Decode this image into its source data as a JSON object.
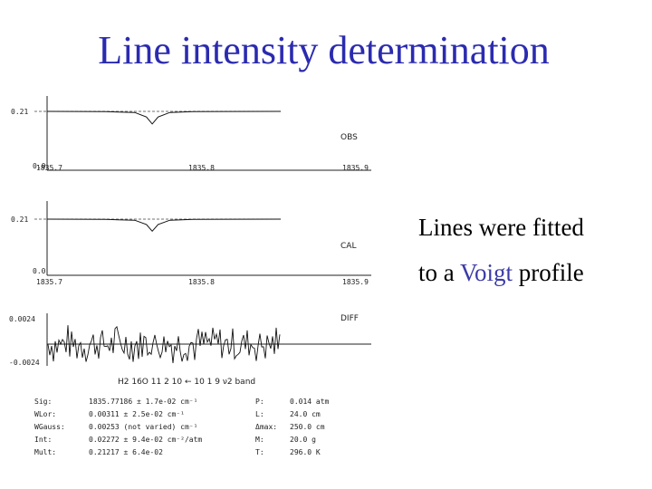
{
  "title": "Line intensity determination",
  "caption": {
    "line1": "Lines were fitted",
    "line2_pre": "to a ",
    "line2_hl": "Voigt",
    "line2_post": " profile"
  },
  "chart_data": [
    {
      "type": "line",
      "panel_label": "OBS",
      "y_ticks": [
        "0.21",
        "0.0"
      ],
      "x_ticks": [
        "1835.7",
        "1835.8",
        "1835.9"
      ],
      "xlim": [
        1835.7,
        1835.86
      ],
      "series": [
        {
          "x": [
            1835.7,
            1835.74,
            1835.76,
            1835.768,
            1835.772,
            1835.776,
            1835.784,
            1835.8,
            1835.86
          ],
          "values": [
            0.21,
            0.209,
            0.206,
            0.19,
            0.165,
            0.19,
            0.206,
            0.209,
            0.21
          ]
        }
      ]
    },
    {
      "type": "line",
      "panel_label": "CAL",
      "y_ticks": [
        "0.21",
        "0.0"
      ],
      "x_ticks": [
        "1835.7",
        "1835.8",
        "1835.9"
      ],
      "xlim": [
        1835.7,
        1835.86
      ],
      "series": [
        {
          "x": [
            1835.7,
            1835.74,
            1835.76,
            1835.768,
            1835.772,
            1835.776,
            1835.784,
            1835.8,
            1835.86
          ],
          "values": [
            0.21,
            0.209,
            0.206,
            0.19,
            0.165,
            0.19,
            0.206,
            0.209,
            0.21
          ]
        }
      ]
    },
    {
      "type": "line",
      "panel_label": "DIFF",
      "y_ticks": [
        "0.0024",
        "-0.0024"
      ],
      "ylim": [
        -0.0024,
        0.0024
      ]
    }
  ],
  "band_label": "H2 16O 11 2 10 ← 10 1 9 ν2 band",
  "fit_results": [
    {
      "k1": "Sig:",
      "v1": "1835.77186 ± 1.7e-02 cm⁻¹",
      "k2": "P:",
      "v2": "0.014 atm"
    },
    {
      "k1": "WLor:",
      "v1": "0.00311 ± 2.5e-02 cm⁻¹",
      "k2": "L:",
      "v2": "24.0 cm"
    },
    {
      "k1": "WGauss:",
      "v1": "0.00253 (not varied) cm⁻¹",
      "k2": "Δmax:",
      "v2": "250.0 cm"
    },
    {
      "k1": "Int:",
      "v1": "0.02272 ± 9.4e-02 cm⁻²/atm",
      "k2": "M:",
      "v2": "20.0 g"
    },
    {
      "k1": "Mult:",
      "v1": "0.21217 ± 6.4e-02",
      "k2": "T:",
      "v2": "296.0 K"
    }
  ]
}
